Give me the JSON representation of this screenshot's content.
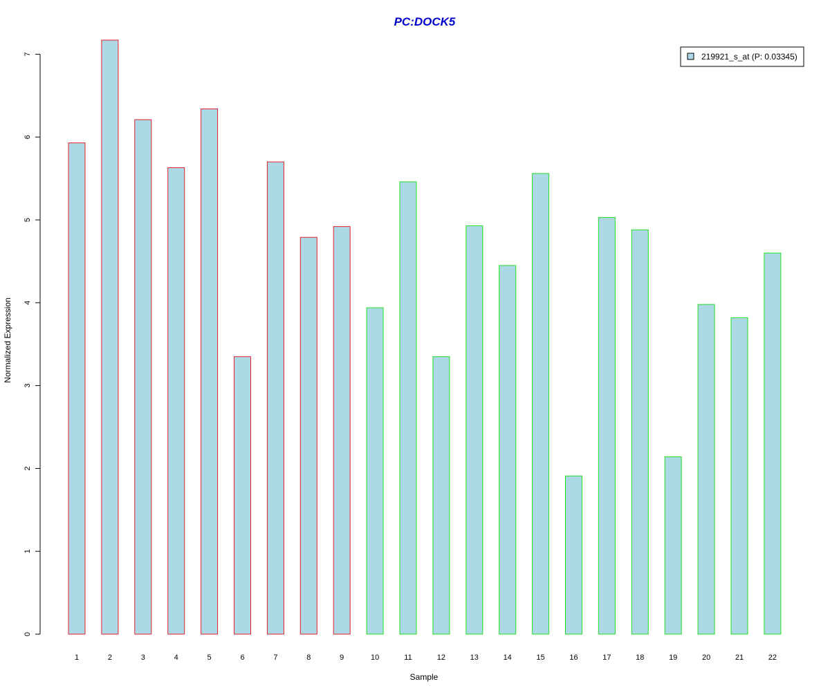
{
  "chart_data": {
    "type": "bar",
    "title": "PC:DOCK5",
    "xlabel": "Sample",
    "ylabel": "Normalized Expression",
    "categories": [
      "1",
      "2",
      "3",
      "4",
      "5",
      "6",
      "7",
      "8",
      "9",
      "10",
      "11",
      "12",
      "13",
      "14",
      "15",
      "16",
      "17",
      "18",
      "19",
      "20",
      "21",
      "22"
    ],
    "series": [
      {
        "name": "219921_s_at (P: 0.03345)",
        "values": [
          5.93,
          7.17,
          6.21,
          5.63,
          6.34,
          3.35,
          5.7,
          4.79,
          4.92,
          3.94,
          5.46,
          3.35,
          4.93,
          4.45,
          5.56,
          1.91,
          5.03,
          4.88,
          2.14,
          3.98,
          3.82,
          4.6
        ]
      }
    ],
    "groups": [
      {
        "samples": [
          1,
          9
        ],
        "border_color": "#e0202a"
      },
      {
        "samples": [
          10,
          22
        ],
        "border_color": "#22e022"
      }
    ],
    "yticks": [
      0,
      1,
      2,
      3,
      4,
      5,
      6,
      7
    ],
    "ylim": [
      0,
      7.2
    ],
    "grid": false,
    "legend_position": "top-right",
    "colors": {
      "bar_fill": "#add8e6",
      "title": "#0000cc",
      "axis": "#000000"
    }
  }
}
